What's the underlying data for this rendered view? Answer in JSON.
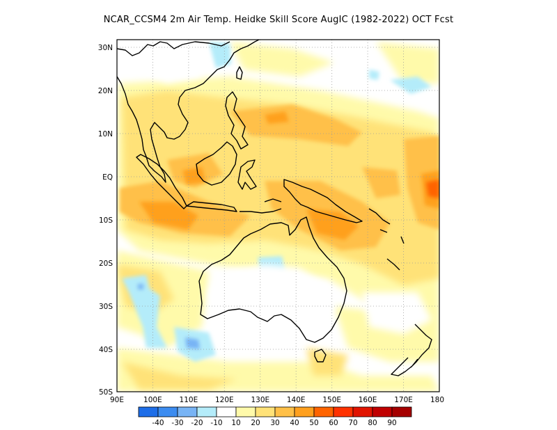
{
  "title": "NCAR_CCSM4  2m Air Temp. Heidke Skill Score AugIC (1982-2022) OCT Fcst",
  "map": {
    "lon_range": [
      90,
      180
    ],
    "lat_range": [
      -50,
      32
    ],
    "lon_ticks": [
      "90E",
      "100E",
      "110E",
      "120E",
      "130E",
      "140E",
      "150E",
      "160E",
      "170E",
      "180"
    ],
    "lat_ticks": [
      "30N",
      "20N",
      "10N",
      "EQ",
      "10S",
      "20S",
      "30S",
      "40S",
      "50S"
    ],
    "gridlines": true
  },
  "colorbar": {
    "labels": [
      "-40",
      "-30",
      "-20",
      "-10",
      "10",
      "20",
      "30",
      "40",
      "50",
      "60",
      "70",
      "80",
      "90"
    ],
    "colors": [
      "#1e6ee8",
      "#3c8cf0",
      "#78b4f5",
      "#b4ecfa",
      "#ffffff",
      "#fffaaa",
      "#ffe278",
      "#ffc048",
      "#ffa01e",
      "#ff6400",
      "#ff3200",
      "#e11400",
      "#c00000",
      "#a50000"
    ]
  }
}
